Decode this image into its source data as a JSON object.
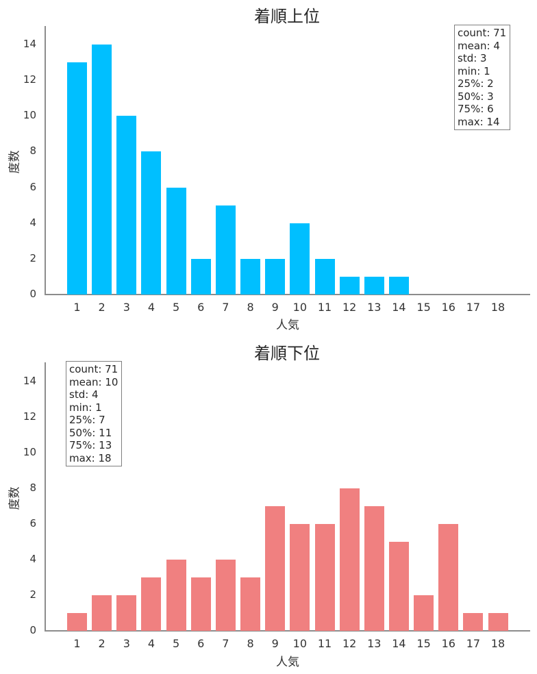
{
  "chart_data": [
    {
      "type": "bar",
      "title": "着順上位",
      "xlabel": "人気",
      "ylabel": "度数",
      "categories": [
        "1",
        "2",
        "3",
        "4",
        "5",
        "6",
        "7",
        "8",
        "9",
        "10",
        "11",
        "12",
        "13",
        "14",
        "15",
        "16",
        "17",
        "18"
      ],
      "values": [
        13,
        14,
        10,
        8,
        6,
        2,
        5,
        2,
        2,
        4,
        2,
        1,
        1,
        1,
        0,
        0,
        0,
        0
      ],
      "yticks": [
        "0",
        "2",
        "4",
        "6",
        "8",
        "10",
        "12",
        "14"
      ],
      "ylim": [
        0,
        15
      ],
      "color": "#00bfff",
      "grid": false,
      "stats": [
        "count: 71",
        "mean: 4",
        "std: 3",
        "min: 1",
        "25%: 2",
        "50%: 3",
        "75%: 6",
        "max: 14"
      ],
      "stats_position": "upper right"
    },
    {
      "type": "bar",
      "title": "着順下位",
      "xlabel": "人気",
      "ylabel": "度数",
      "categories": [
        "1",
        "2",
        "3",
        "4",
        "5",
        "6",
        "7",
        "8",
        "9",
        "10",
        "11",
        "12",
        "13",
        "14",
        "15",
        "16",
        "17",
        "18"
      ],
      "values": [
        1,
        2,
        2,
        3,
        4,
        3,
        4,
        3,
        7,
        6,
        6,
        8,
        7,
        5,
        2,
        6,
        1,
        1
      ],
      "yticks": [
        "0",
        "2",
        "4",
        "6",
        "8",
        "10",
        "12",
        "14"
      ],
      "ylim": [
        0,
        15
      ],
      "color": "#f08080",
      "grid": false,
      "stats": [
        "count: 71",
        "mean: 10",
        "std: 4",
        "min: 1",
        "25%: 7",
        "50%: 11",
        "75%: 13",
        "max: 18"
      ],
      "stats_position": "upper left"
    }
  ]
}
